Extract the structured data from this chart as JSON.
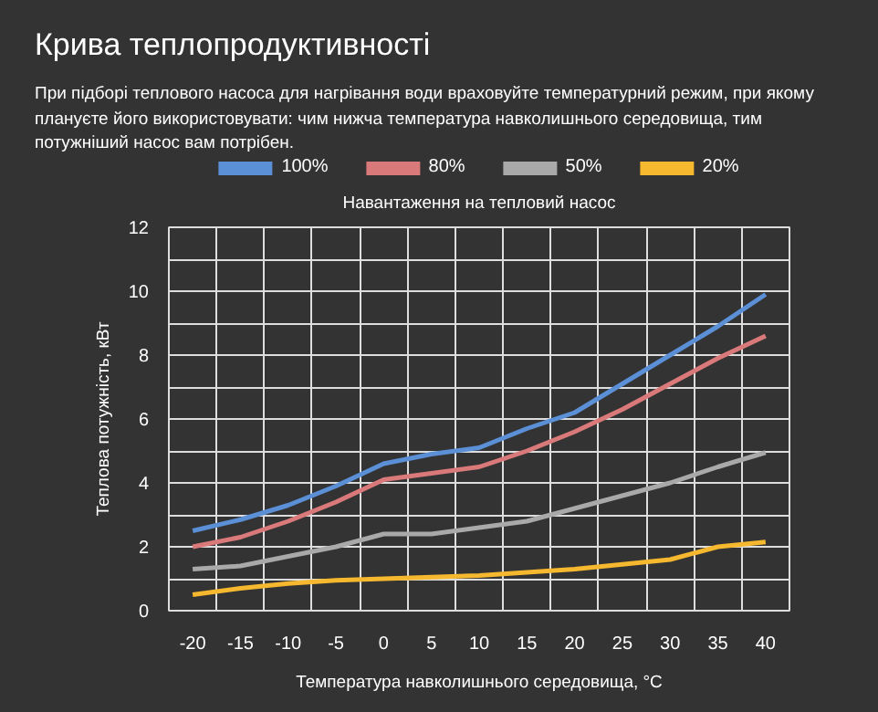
{
  "chart_data": {
    "type": "line",
    "title": "Крива теплопродуктивності",
    "subtitle": "При підборі теплового насоса для нагрівання води враховуйте температурний режим, при якому плануєте його використовувати: чим нижча температура навколишнього середовища, тим потужніший насос вам потрібен.",
    "legend_title": "Навантаження на тепловий насос",
    "xlabel": "Температура навколишнього середовища, °C",
    "ylabel": "Теплова потужність, кВт",
    "x": [
      -20,
      -15,
      -10,
      -5,
      0,
      5,
      10,
      15,
      20,
      25,
      30,
      35,
      40
    ],
    "series": [
      {
        "name": "100%",
        "color": "#5b8fd6",
        "values": [
          2.5,
          2.85,
          3.3,
          3.9,
          4.6,
          4.9,
          5.1,
          5.7,
          6.2,
          7.1,
          8.0,
          8.9,
          9.9
        ]
      },
      {
        "name": "80%",
        "color": "#d9797a",
        "values": [
          2.0,
          2.3,
          2.8,
          3.4,
          4.1,
          4.3,
          4.5,
          5.0,
          5.6,
          6.3,
          7.1,
          7.9,
          8.6
        ]
      },
      {
        "name": "50%",
        "color": "#a9a9a9",
        "values": [
          1.3,
          1.4,
          1.7,
          2.0,
          2.4,
          2.4,
          2.6,
          2.8,
          3.2,
          3.6,
          4.0,
          4.5,
          4.95
        ]
      },
      {
        "name": "20%",
        "color": "#f5b82e",
        "values": [
          0.5,
          0.7,
          0.85,
          0.95,
          1.0,
          1.05,
          1.1,
          1.2,
          1.3,
          1.45,
          1.6,
          2.0,
          2.15
        ]
      }
    ],
    "xlim": [
      -22.5,
      42.5
    ],
    "xticks": [
      -20,
      -15,
      -10,
      -5,
      0,
      5,
      10,
      15,
      20,
      25,
      30,
      35,
      40
    ],
    "ylim": [
      0,
      12
    ],
    "yticks": [
      0,
      {
        "value": 1,
        "label": null
      },
      2,
      {
        "value": 3,
        "label": null
      },
      4,
      {
        "value": 5,
        "label": null
      },
      6,
      {
        "value": 7,
        "label": null
      },
      8,
      {
        "value": 9,
        "label": null
      },
      10,
      {
        "value": 11,
        "label": null
      },
      12
    ],
    "grid": true,
    "legend": "top",
    "marker": "none",
    "line_style": "solid"
  }
}
